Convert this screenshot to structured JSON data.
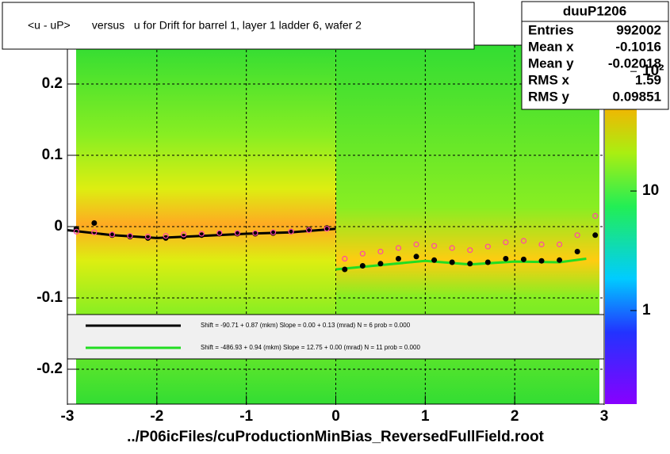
{
  "chart_data": {
    "type": "profile2d",
    "title": "<u - uP>       versus   u for Drift for barrel 1, layer 1 ladder 6, wafer 2",
    "x_label": "../P06icFiles/cuProductionMinBias_ReversedFullField.root",
    "xlim": [
      -3,
      3
    ],
    "ylim": [
      -0.25,
      0.25
    ],
    "xticks": [
      -3,
      -2,
      -1,
      0,
      1,
      2,
      3
    ],
    "yticks": [
      -0.2,
      -0.1,
      0,
      0.1,
      0.2
    ],
    "grid": true,
    "zlim": [
      0.165,
      166
    ],
    "zticks": [
      1,
      10,
      {
        "value": 100,
        "label": "10²"
      }
    ],
    "zlog": true,
    "stats": {
      "name": "duuP1206",
      "rows": [
        [
          "Entries",
          "992002"
        ],
        [
          "Mean x",
          "-0.1016"
        ],
        [
          "Mean y",
          "-0.02018"
        ],
        [
          "RMS x",
          "1.59"
        ],
        [
          "RMS y",
          "0.09851"
        ]
      ]
    },
    "points": [
      {
        "color": "#000000",
        "marker": "filled",
        "x": [
          -2.9,
          -2.7,
          -2.5,
          -2.3,
          -2.1,
          -1.9,
          -1.7,
          -1.5,
          -1.3,
          -1.1,
          -0.9,
          -0.7,
          -0.5,
          -0.3,
          -0.1,
          0.1,
          0.3,
          0.5,
          0.7,
          0.9,
          1.1,
          1.3,
          1.5,
          1.7,
          1.9,
          2.1,
          2.3,
          2.5,
          2.7,
          2.9
        ],
        "values": [
          -0.003,
          0.005,
          -0.012,
          -0.014,
          -0.016,
          -0.016,
          -0.014,
          -0.012,
          -0.01,
          -0.01,
          -0.01,
          -0.009,
          -0.007,
          -0.004,
          -0.002,
          -0.06,
          -0.055,
          -0.052,
          -0.045,
          -0.042,
          -0.047,
          -0.05,
          -0.052,
          -0.05,
          -0.045,
          -0.046,
          -0.048,
          -0.047,
          -0.035,
          -0.012
        ]
      },
      {
        "color": "#ff44aa",
        "marker": "open",
        "x": [
          -2.9,
          -2.7,
          -2.5,
          -2.3,
          -2.1,
          -1.9,
          -1.7,
          -1.5,
          -1.3,
          -1.1,
          -0.9,
          -0.7,
          -0.5,
          -0.3,
          -0.1,
          0.1,
          0.3,
          0.5,
          0.7,
          0.9,
          1.1,
          1.3,
          1.5,
          1.7,
          1.9,
          2.1,
          2.3,
          2.5,
          2.7,
          2.9
        ],
        "values": [
          -0.007,
          -0.008,
          -0.011,
          -0.013,
          -0.014,
          -0.013,
          -0.011,
          -0.01,
          -0.009,
          -0.009,
          -0.009,
          -0.008,
          -0.007,
          -0.005,
          -0.003,
          -0.045,
          -0.038,
          -0.035,
          -0.03,
          -0.025,
          -0.027,
          -0.03,
          -0.033,
          -0.028,
          -0.022,
          -0.02,
          -0.025,
          -0.025,
          -0.012,
          0.015
        ]
      }
    ],
    "series": [
      {
        "name": "Shift =   -90.71 + 0.87 (mkm) Slope =     0.00 + 0.13 (mrad)  N = 6 prob = 0.000",
        "color": "#000000",
        "x": [
          -3,
          -2.5,
          -2,
          -1.5,
          -1,
          -0.5,
          0
        ],
        "values": [
          -0.005,
          -0.012,
          -0.016,
          -0.013,
          -0.01,
          -0.008,
          -0.003
        ]
      },
      {
        "name": "Shift =  -486.93 + 0.94 (mkm) Slope =    12.75 + 0.00 (mrad)  N = 11 prob = 0.000",
        "color": "#22dd22",
        "x": [
          0,
          0.5,
          1,
          1.5,
          2,
          2.5,
          2.8
        ],
        "values": [
          -0.06,
          -0.054,
          -0.048,
          -0.053,
          -0.049,
          -0.05,
          -0.045
        ]
      }
    ]
  }
}
